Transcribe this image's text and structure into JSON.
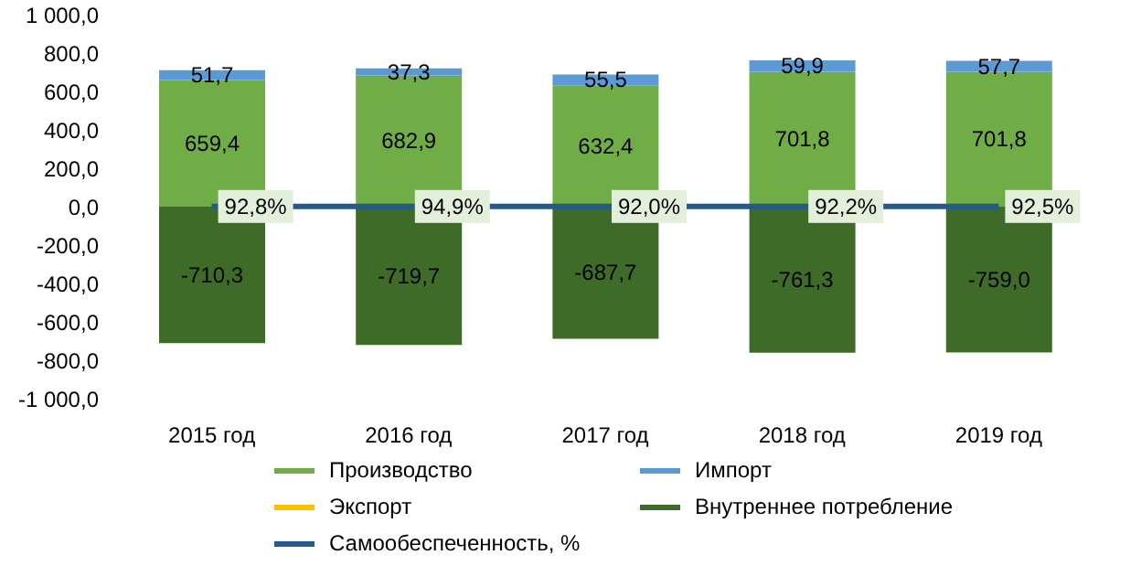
{
  "chart_data": {
    "type": "bar",
    "stacked": true,
    "categories": [
      "2015 год",
      "2016 год",
      "2017 год",
      "2018 год",
      "2019 год"
    ],
    "series": [
      {
        "name": "Производство",
        "color": "#70ad47",
        "values": [
          659.4,
          682.9,
          632.4,
          701.8,
          701.8
        ],
        "value_labels": [
          "659,4",
          "682,9",
          "632,4",
          "701,8",
          "701,8"
        ]
      },
      {
        "name": "Импорт",
        "color": "#5b9bd5",
        "values": [
          51.7,
          37.3,
          55.5,
          59.9,
          57.7
        ],
        "value_labels": [
          "51,7",
          "37,3",
          "55,5",
          "59,9",
          "57,7"
        ]
      },
      {
        "name": "Экспорт",
        "color": "#ffc000",
        "values": [
          0,
          0,
          0,
          0,
          0
        ]
      },
      {
        "name": "Внутреннее  потребление",
        "color": "#3e6b27",
        "values": [
          -710.3,
          -719.7,
          -687.7,
          -761.3,
          -759.0
        ],
        "value_labels": [
          "-710,3",
          "-719,7",
          "-687,7",
          "-761,3",
          "-759,0"
        ]
      },
      {
        "name": "Самообеспеченность,  %",
        "type": "line",
        "color": "#245a8c",
        "values": [
          0.928,
          0.949,
          0.92,
          0.922,
          0.925
        ],
        "value_labels": [
          "92,8%",
          "94,9%",
          "92,0%",
          "92,2%",
          "92,5%"
        ]
      }
    ],
    "ylim": [
      -1000,
      1000
    ],
    "yticks": [
      {
        "value": -1000,
        "label": "-1 000,0"
      },
      {
        "value": -800,
        "label": "-800,0"
      },
      {
        "value": -600,
        "label": "-600,0"
      },
      {
        "value": -400,
        "label": "-400,0"
      },
      {
        "value": -200,
        "label": "-200,0"
      },
      {
        "value": 0,
        "label": "0,0"
      },
      {
        "value": 200,
        "label": "200,0"
      },
      {
        "value": 400,
        "label": "400,0"
      },
      {
        "value": 600,
        "label": "600,0"
      },
      {
        "value": 800,
        "label": "800,0"
      },
      {
        "value": 1000,
        "label": "1 000,0"
      }
    ],
    "grid": false,
    "legend": "bottom"
  }
}
